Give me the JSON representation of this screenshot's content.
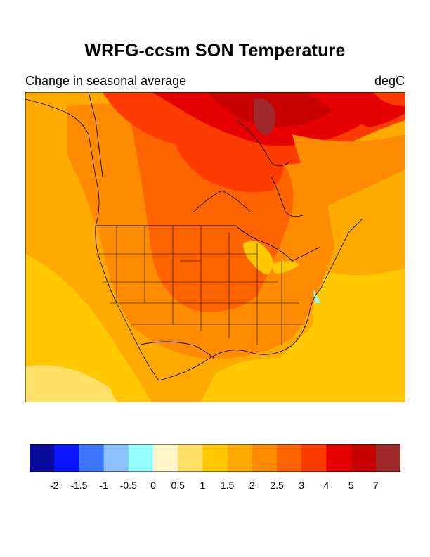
{
  "header": {
    "title": "WRFG-ccsm SON Temperature",
    "subtitle_left": "Change in seasonal average",
    "units": "degC"
  },
  "map": {
    "description_layers": [
      "ocean",
      "land",
      "coastlines",
      "state-borders",
      "country-borders"
    ]
  },
  "colorbar": {
    "colors": [
      "#0a0a9c",
      "#0a14ff",
      "#3c78ff",
      "#8cbfff",
      "#96ffff",
      "#fff5c8",
      "#ffe066",
      "#ffc800",
      "#ffaa00",
      "#ff8c00",
      "#ff6400",
      "#ff3c00",
      "#e60000",
      "#c80000",
      "#a02828"
    ],
    "labels": [
      "-2",
      "-1.5",
      "-1",
      "-0.5",
      "0",
      "0.5",
      "1",
      "1.5",
      "2",
      "2.5",
      "3",
      "4",
      "5",
      "7"
    ]
  }
}
